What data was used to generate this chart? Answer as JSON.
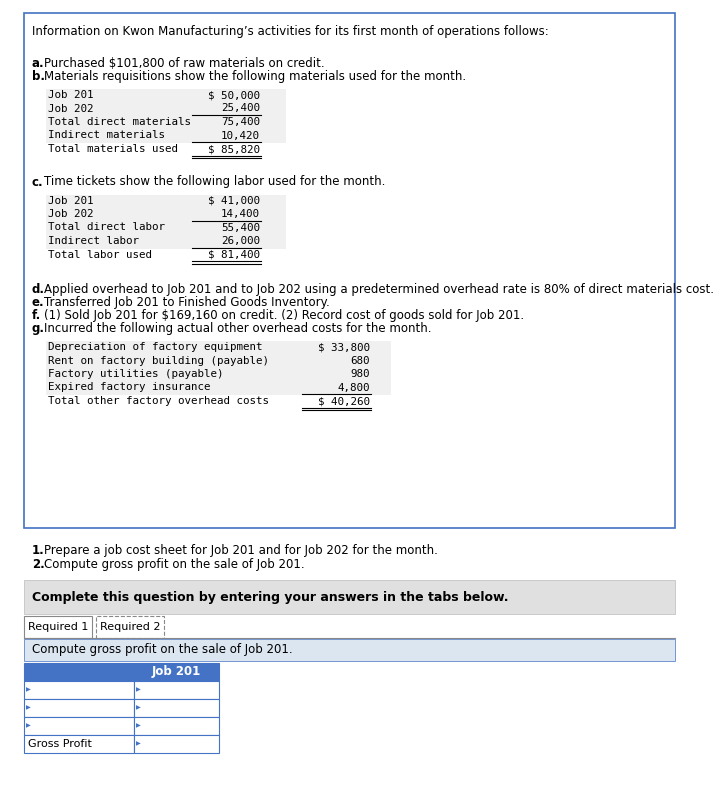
{
  "bg_color": "#ffffff",
  "border_color": "#4472c4",
  "header_text": "Information on Kwon Manufacturing’s activities for its first month of operations follows:",
  "materials_table": {
    "rows": [
      [
        "Job 201",
        "$ 50,000"
      ],
      [
        "Job 202",
        "25,400"
      ],
      [
        "Total direct materials",
        "75,400"
      ],
      [
        "Indirect materials",
        "10,420"
      ],
      [
        "Total materials used",
        "$ 85,820"
      ]
    ]
  },
  "labor_table": {
    "rows": [
      [
        "Job 201",
        "$ 41,000"
      ],
      [
        "Job 202",
        "14,400"
      ],
      [
        "Total direct labor",
        "55,400"
      ],
      [
        "Indirect labor",
        "26,000"
      ],
      [
        "Total labor used",
        "$ 81,400"
      ]
    ]
  },
  "overhead_table": {
    "rows": [
      [
        "Depreciation of factory equipment",
        "$ 33,800"
      ],
      [
        "Rent on factory building (payable)",
        "680"
      ],
      [
        "Factory utilities (payable)",
        "980"
      ],
      [
        "Expired factory insurance",
        "4,800"
      ],
      [
        "Total other factory overhead costs",
        "$ 40,260"
      ]
    ]
  },
  "section_a": "Purchased $101,800 of raw materials on credit.",
  "section_b": "Materials requisitions show the following materials used for the month.",
  "section_c": "Time tickets show the following labor used for the month.",
  "section_d": "Applied overhead to Job 201 and to Job 202 using a predetermined overhead rate is 80% of direct materials cost.",
  "section_e": "Transferred Job 201 to Finished Goods Inventory.",
  "section_f": "(1) Sold Job 201 for $169,160 on credit. (2) Record cost of goods sold for Job 201.",
  "section_g": "Incurred the following actual other overhead costs for the month.",
  "question1": "Prepare a job cost sheet for Job 201 and for Job 202 for the month.",
  "question2": "Compute gross profit on the sale of Job 201.",
  "answer_header": "Complete this question by entering your answers in the tabs below.",
  "tab1_label": "Required 1",
  "tab2_label": "Required 2",
  "answer_instruction": "Compute gross profit on the sale of Job 201.",
  "answer_table_header": "Job 201",
  "gross_profit_label": "Gross Profit",
  "table_header_bg": "#4472c4",
  "table_border_color": "#4472c4",
  "info_box_border": "#4472c4",
  "answer_bg": "#dce6f1",
  "tab_bg": "#e8e8e8",
  "shade_color": "#f0f0f0"
}
